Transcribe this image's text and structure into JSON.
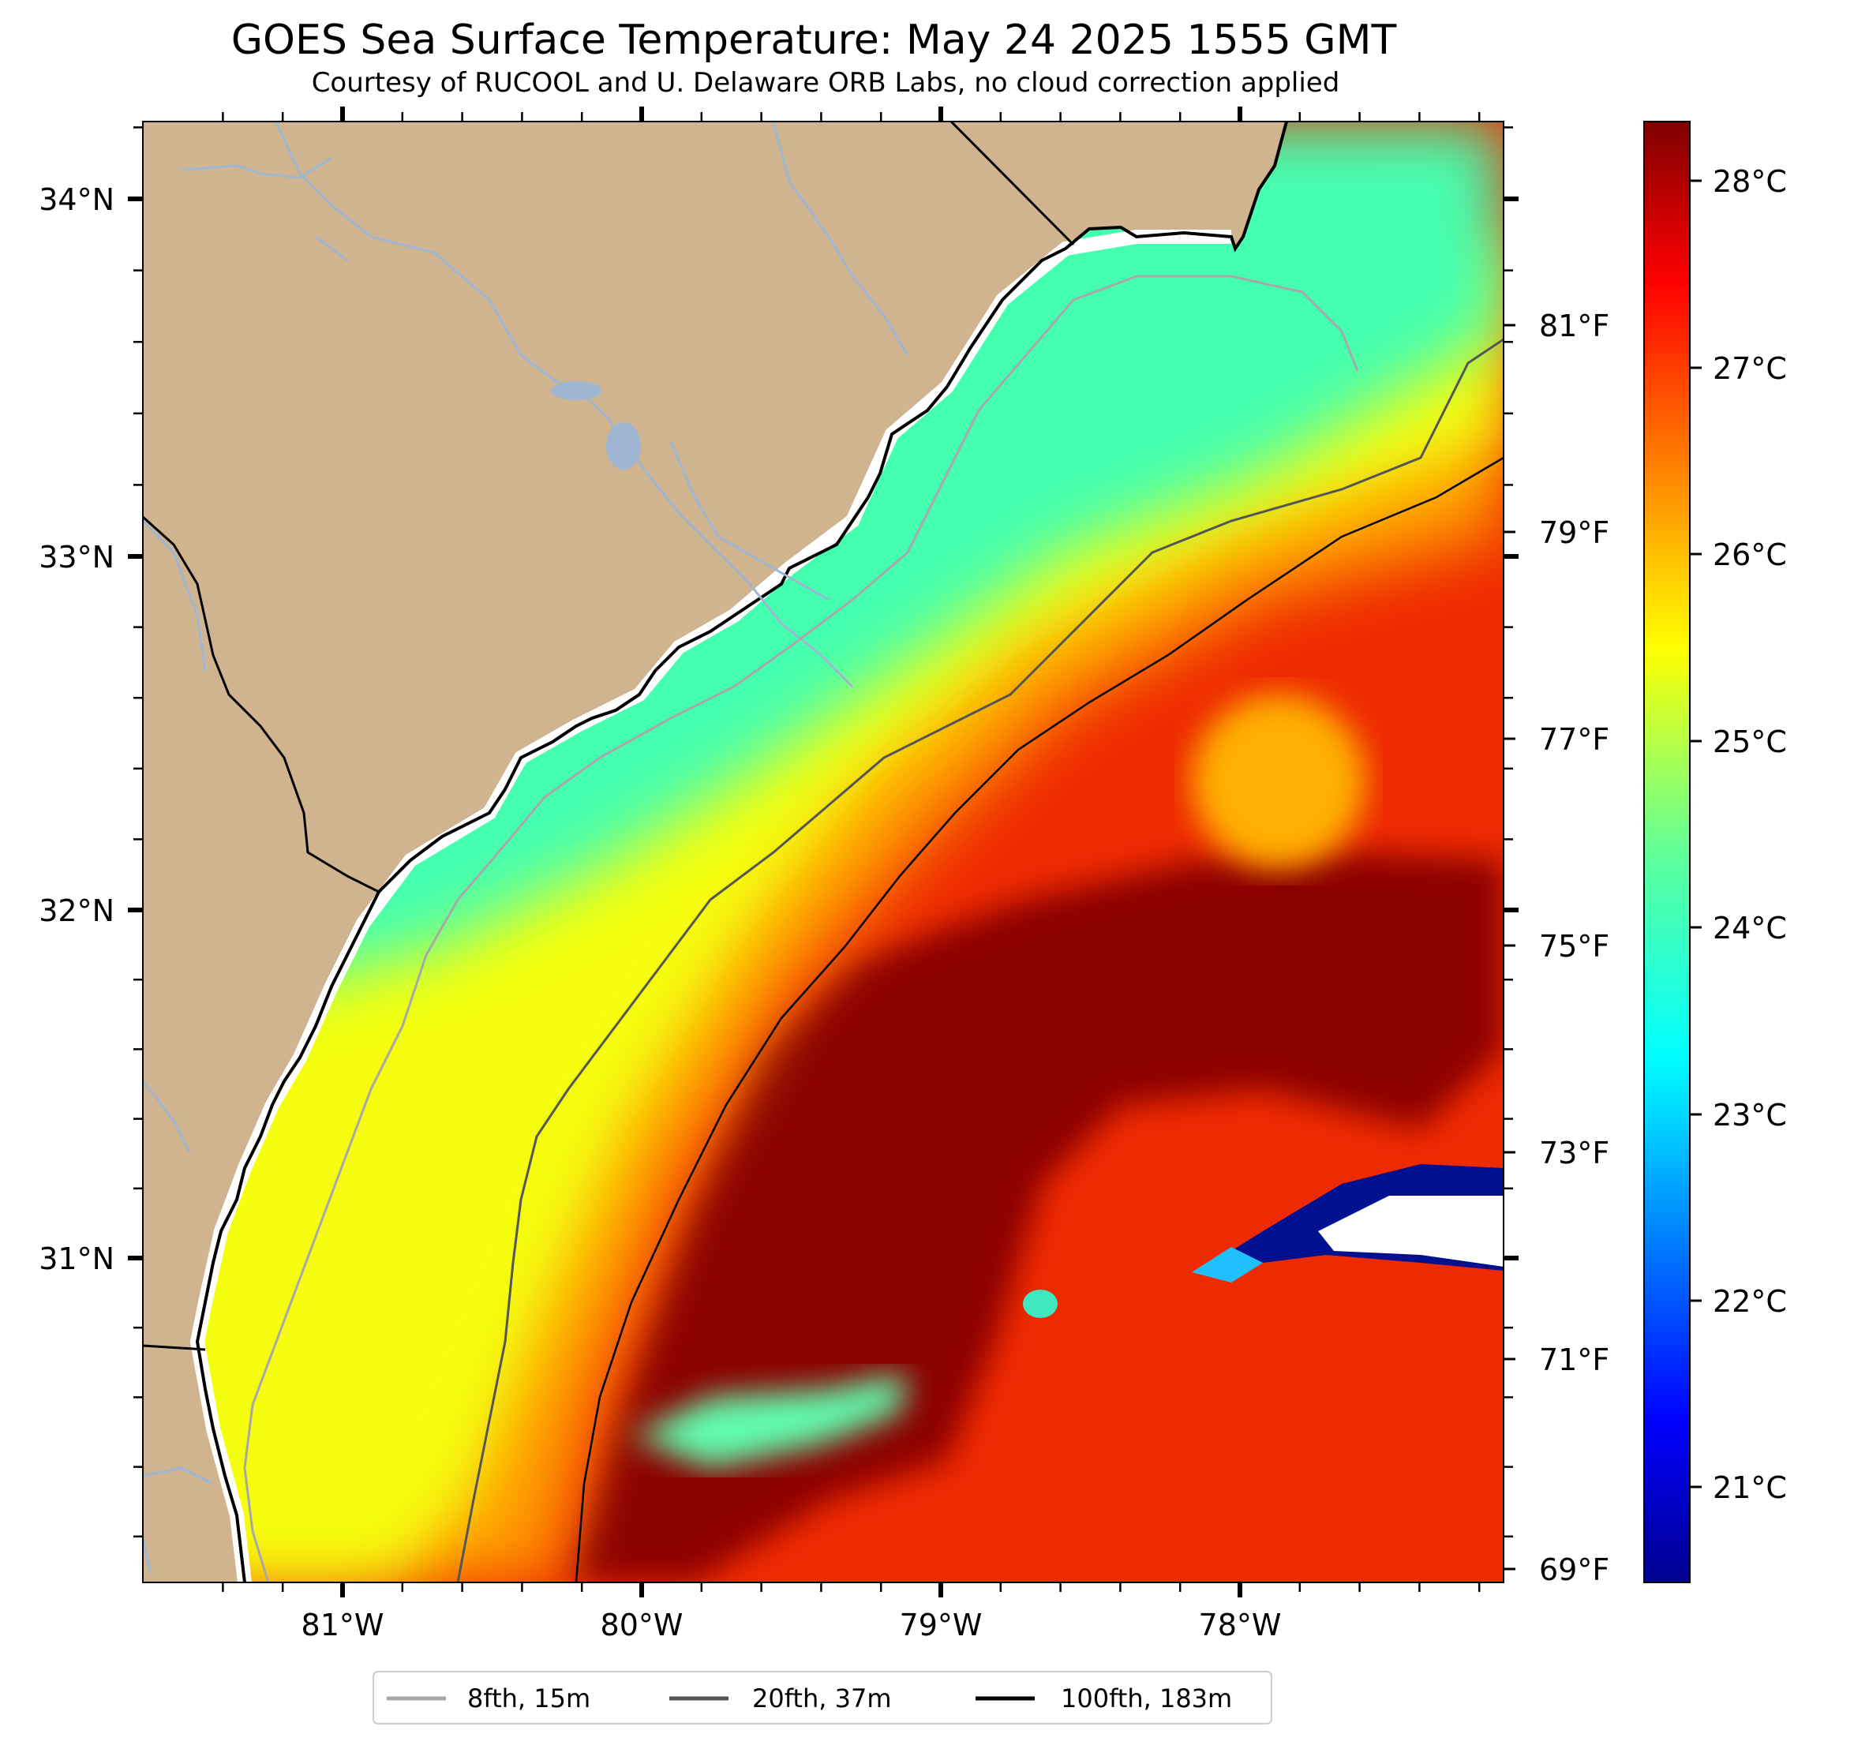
{
  "header": {
    "title": "GOES Sea Surface Temperature: May 24 2025 1555 GMT",
    "subtitle": "Courtesy of RUCOOL and U. Delaware ORB Labs, no cloud correction applied"
  },
  "map": {
    "lon_range": [
      -81.67,
      -77.12
    ],
    "lat_range": [
      30.13,
      34.22
    ],
    "lon_ticks": [
      "81°W",
      "80°W",
      "79°W",
      "78°W"
    ],
    "lat_ticks": [
      "34°N",
      "33°N",
      "32°N",
      "31°N"
    ],
    "land_color": "#cfb48f",
    "river_color": "#9fb6d2"
  },
  "colorbar": {
    "celsius_labels": [
      "28°C",
      "27°C",
      "26°C",
      "25°C",
      "24°C",
      "23°C",
      "22°C",
      "21°C"
    ],
    "fahrenheit_labels": [
      "81°F",
      "79°F",
      "77°F",
      "75°F",
      "73°F",
      "71°F",
      "69°F"
    ],
    "colormap": "jet",
    "range_c": [
      20.6,
      28.3
    ]
  },
  "legend": {
    "items": [
      {
        "label": "8fth, 15m",
        "color": "#a8a8a8"
      },
      {
        "label": "20fth, 37m",
        "color": "#555555"
      },
      {
        "label": "100fth, 183m",
        "color": "#000000"
      }
    ]
  }
}
